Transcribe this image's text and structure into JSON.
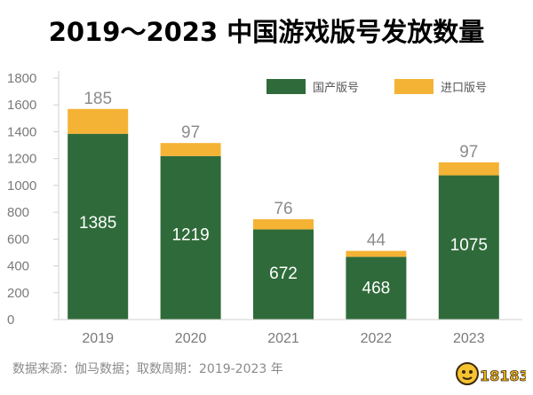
{
  "chart_data": {
    "type": "bar",
    "stacked": true,
    "title": "2019～2023 中国游戏版号发放数量",
    "categories": [
      "2019",
      "2020",
      "2021",
      "2022",
      "2023"
    ],
    "series": [
      {
        "name": "国产版号",
        "values": [
          1385,
          1219,
          672,
          468,
          1075
        ],
        "color": "#2f6b3a",
        "label_color": "#ffffff"
      },
      {
        "name": "进口版号",
        "values": [
          185,
          97,
          76,
          44,
          97
        ],
        "color": "#f5b335",
        "label_color": "#8c8c8c"
      }
    ],
    "ylim": [
      0,
      1800
    ],
    "yticks": [
      0,
      200,
      400,
      600,
      800,
      1000,
      1200,
      1400,
      1600,
      1800
    ],
    "xlabel": "",
    "ylabel": "",
    "grid": false,
    "legend_position": "top-right"
  },
  "source_note": "数据来源：伽马数据；取数周期：2019-2023 年",
  "watermark": {
    "text": "18183",
    "icon": "mascot-face-icon"
  }
}
